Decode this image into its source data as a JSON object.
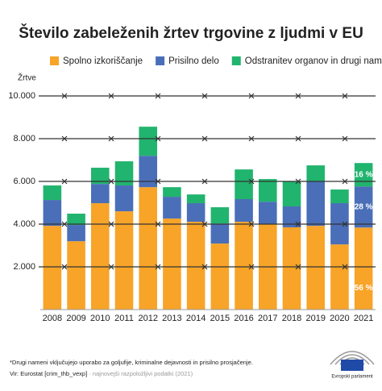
{
  "chart_data": {
    "type": "stacked-bar",
    "title": "Število zabeleženih žrtev trgovine z ljudmi v EU",
    "y_label": "Žrtve",
    "categories": [
      "2008",
      "2009",
      "2010",
      "2011",
      "2012",
      "2013",
      "2014",
      "2015",
      "2016",
      "2017",
      "2018",
      "2019",
      "2020",
      "2021"
    ],
    "series": [
      {
        "name": "Spolno izkoriščanje",
        "color": "#f7a428",
        "values": [
          3920,
          3200,
          4980,
          4600,
          5730,
          4260,
          4110,
          3090,
          4110,
          4000,
          3850,
          3920,
          3050,
          3840
        ]
      },
      {
        "name": "Prisilno delo",
        "color": "#4a6fb8",
        "values": [
          1210,
          760,
          900,
          1210,
          1470,
          1020,
          870,
          940,
          1060,
          1050,
          980,
          2070,
          1930,
          1920
        ]
      },
      {
        "name": "Odstranitev organov in drugi nameni*",
        "color": "#21b46e",
        "values": [
          680,
          530,
          760,
          1130,
          1360,
          450,
          410,
          760,
          1390,
          1060,
          1170,
          760,
          640,
          1100
        ]
      }
    ],
    "annotations": [
      {
        "text": "56 %",
        "series": 0,
        "category": 13
      },
      {
        "text": "28 %",
        "series": 1,
        "category": 13
      },
      {
        "text": "16 %",
        "series": 2,
        "category": 13
      }
    ],
    "ylim": [
      0,
      10000
    ],
    "yticks": [
      {
        "value": 2000,
        "label": "2.000"
      },
      {
        "value": 4000,
        "label": "4.000"
      },
      {
        "value": 6000,
        "label": "6.000"
      },
      {
        "value": 8000,
        "label": "8.000"
      },
      {
        "value": 10000,
        "label": "10.000"
      }
    ],
    "grid": true,
    "footnote": "*Drugi nameni vključujejo uporabo za goljufije, kriminalne dejavnosti in prisilno prosjačenje.",
    "source": "Vir: Eurostat [crim_thb_vexp]",
    "source_note": "· najnovejši razpoložljivi podatki (2021)",
    "logo_text": "Evropski parlament"
  }
}
